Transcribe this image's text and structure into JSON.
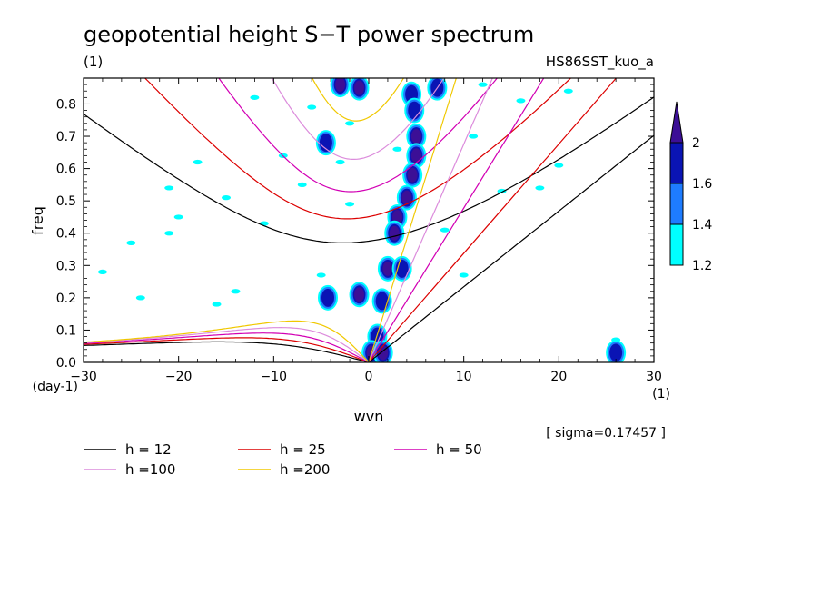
{
  "chart_data": {
    "type": "contour",
    "title": "geopotential height S−T power spectrum",
    "units_left": "(1)",
    "dataset": "HS86SST_kuo_a",
    "xlabel": "wvn",
    "ylabel": "freq",
    "x_units": "(1)",
    "y_units": "(day-1)",
    "xlim": [
      -30,
      30
    ],
    "ylim": [
      0,
      0.88
    ],
    "x_ticks": [
      -30,
      -20,
      -10,
      0,
      10,
      20,
      30
    ],
    "x_tick_labels": [
      "−30",
      "−20",
      "−10",
      "0",
      "10",
      "20",
      "30"
    ],
    "y_ticks": [
      0,
      0.1,
      0.2,
      0.3,
      0.4,
      0.5,
      0.6,
      0.7,
      0.8
    ],
    "y_tick_labels": [
      "0.0",
      "0.1",
      "0.2",
      "0.3",
      "0.4",
      "0.5",
      "0.6",
      "0.7",
      "0.8"
    ],
    "sigma_note": "[ sigma=0.17457 ]",
    "contour_levels": [
      1.2,
      1.4,
      1.6,
      2
    ],
    "contour_level_labels": [
      "1.2",
      "1.4",
      "1.6",
      "2"
    ],
    "fill_colors": [
      "#00ffff",
      "#1e7cff",
      "#0a14b4",
      "#3c0f96"
    ],
    "legend": [
      {
        "label": "h = 12",
        "h": 12,
        "color": "#000000"
      },
      {
        "label": "h = 25",
        "h": 25,
        "color": "#dc0000"
      },
      {
        "label": "h = 50",
        "h": 50,
        "color": "#d200b4"
      },
      {
        "label": "h =100",
        "h": 100,
        "color": "#dc8cdc"
      },
      {
        "label": "h =200",
        "h": 200,
        "color": "#f0c800"
      }
    ],
    "ridge_blobs": [
      [
        4.5,
        0.83,
        1.7
      ],
      [
        4.8,
        0.78,
        1.7
      ],
      [
        5.0,
        0.7,
        1.9
      ],
      [
        5.0,
        0.64,
        1.9
      ],
      [
        4.6,
        0.58,
        1.9
      ],
      [
        4.0,
        0.51,
        1.9
      ],
      [
        3.0,
        0.45,
        1.9
      ],
      [
        2.7,
        0.4,
        1.9
      ],
      [
        2.0,
        0.29,
        1.8
      ],
      [
        1.4,
        0.19,
        1.7
      ],
      [
        0.9,
        0.08,
        1.6
      ],
      [
        0.3,
        0.03,
        1.9
      ],
      [
        1.5,
        0.03,
        1.9
      ],
      [
        -3.0,
        0.86,
        1.9
      ],
      [
        -1.0,
        0.85,
        1.9
      ],
      [
        -4.5,
        0.68,
        1.6
      ],
      [
        -1.0,
        0.21,
        1.8
      ],
      [
        -4.3,
        0.2,
        1.7
      ],
      [
        3.5,
        0.29,
        1.6
      ],
      [
        7.2,
        0.85,
        1.6
      ],
      [
        26.0,
        0.03,
        1.7
      ]
    ],
    "noise_blobs": [
      [
        -28,
        0.28
      ],
      [
        -21,
        0.54
      ],
      [
        -15,
        0.51
      ],
      [
        -14,
        0.22
      ],
      [
        -16,
        0.18
      ],
      [
        -20,
        0.45
      ],
      [
        -6,
        0.79
      ],
      [
        -9,
        0.64
      ],
      [
        -3,
        0.62
      ],
      [
        -2,
        0.49
      ],
      [
        -5,
        0.27
      ],
      [
        -11,
        0.43
      ],
      [
        -21,
        0.4
      ],
      [
        11,
        0.7
      ],
      [
        12,
        0.86
      ],
      [
        18,
        0.54
      ],
      [
        21,
        0.84
      ],
      [
        16,
        0.81
      ],
      [
        8,
        0.41
      ],
      [
        -25,
        0.37
      ],
      [
        -24,
        0.2
      ],
      [
        -12,
        0.82
      ],
      [
        -2,
        0.74
      ],
      [
        10,
        0.27
      ],
      [
        14,
        0.53
      ],
      [
        20,
        0.61
      ],
      [
        26,
        0.07
      ],
      [
        3,
        0.66
      ],
      [
        -7,
        0.55
      ],
      [
        -18,
        0.62
      ]
    ]
  }
}
